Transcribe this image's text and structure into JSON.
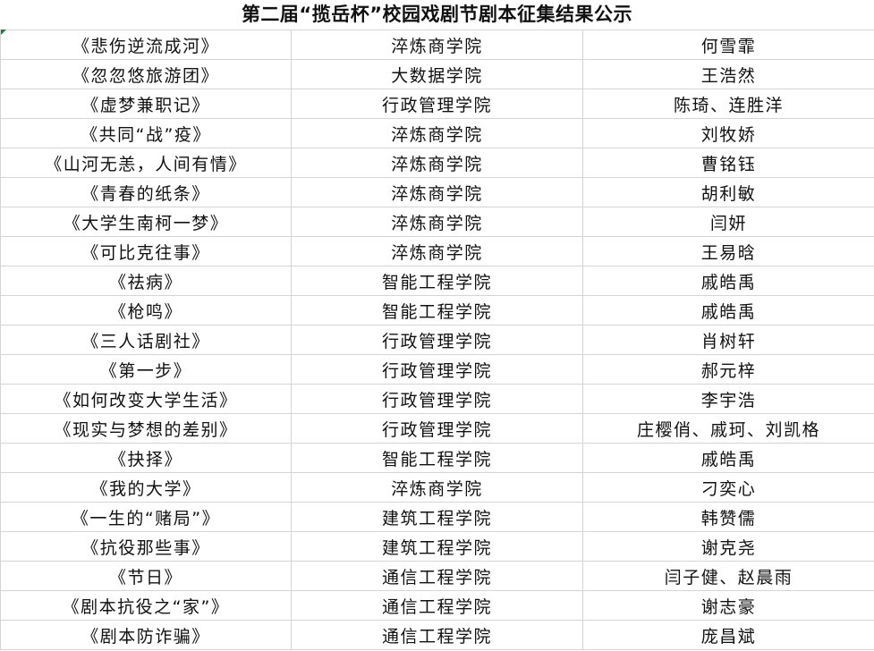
{
  "title": "第二届“揽岳杯”校园戏剧节剧本征集结果公示",
  "rows": [
    [
      "《悲伤逆流成河》",
      "淬炼商学院",
      "何雪霏"
    ],
    [
      "《忽忽悠旅游团》",
      "大数据学院",
      "王浩然"
    ],
    [
      "《虚梦兼职记》",
      "行政管理学院",
      "陈琦、连胜洋"
    ],
    [
      "《共同“战”疫》",
      "淬炼商学院",
      "刘牧娇"
    ],
    [
      "《山河无恙，人间有情》",
      "淬炼商学院",
      "曹铭钰"
    ],
    [
      "《青春的纸条》",
      "淬炼商学院",
      "胡利敏"
    ],
    [
      "《大学生南柯一梦》",
      "淬炼商学院",
      "闫妍"
    ],
    [
      "《可比克往事》",
      "淬炼商学院",
      "王易晗"
    ],
    [
      "《祛病》",
      "智能工程学院",
      "戚皓禹"
    ],
    [
      "《枪鸣》",
      "智能工程学院",
      "戚皓禹"
    ],
    [
      "《三人话剧社》",
      "行政管理学院",
      "肖树轩"
    ],
    [
      "《第一步》",
      "行政管理学院",
      "郝元梓"
    ],
    [
      "《如何改变大学生活》",
      "行政管理学院",
      "李宇浩"
    ],
    [
      "《现实与梦想的差别》",
      "行政管理学院",
      "庄樱俏、戚珂、刘凯格"
    ],
    [
      "《抉择》",
      "智能工程学院",
      "戚皓禹"
    ],
    [
      "《我的大学》",
      "淬炼商学院",
      "刁奕心"
    ],
    [
      "《一生的“赌局”》",
      "建筑工程学院",
      "韩赞儒"
    ],
    [
      "《抗役那些事》",
      "建筑工程学院",
      "谢克尧"
    ],
    [
      "《节日》",
      "通信工程学院",
      "闫子健、赵晨雨"
    ],
    [
      "《剧本抗役之“家”》",
      "通信工程学院",
      "谢志豪"
    ],
    [
      "《剧本防诈骗》",
      "通信工程学院",
      "庞昌斌"
    ]
  ]
}
